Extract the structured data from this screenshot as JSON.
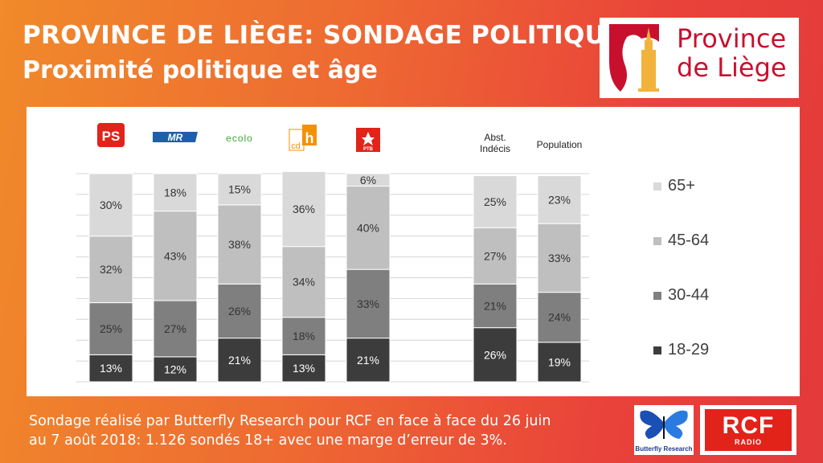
{
  "header": {
    "title": "PROVINCE DE LIÈGE: SONDAGE POLITIQUE",
    "subtitle": "Proximité politique et âge"
  },
  "logo": {
    "line1": "Province",
    "line2": "de Liège",
    "color": "#c8102e"
  },
  "footer": {
    "line1": "Sondage réalisé par Butterfly Research pour RCF en face à face du 26 juin",
    "line2": "au 7 août 2018:  1.126 sondés 18+ avec une marge d’erreur de 3%."
  },
  "sponsors": {
    "butterfly": "Butterfly Research",
    "rcf": "RCF",
    "rcf_sub": "RADIO"
  },
  "chart_data": {
    "type": "bar",
    "stacked": true,
    "categories": [
      "PS",
      "MR",
      "ecolo",
      "cdh",
      "PTB",
      "Abst. Indécis",
      "Population"
    ],
    "category_labels": [
      {
        "kind": "logo",
        "text": "PS",
        "color": "#e2231a"
      },
      {
        "kind": "logo",
        "text": "MR",
        "color": "#1f5fa8"
      },
      {
        "kind": "logo",
        "text": "ecolo",
        "color": "#3aa935"
      },
      {
        "kind": "logo",
        "text": "cdh",
        "color": "#f39200"
      },
      {
        "kind": "logo",
        "text": "PTB",
        "color": "#e2231a"
      },
      {
        "kind": "text",
        "lines": [
          "Abst.",
          "Indécis"
        ]
      },
      {
        "kind": "text",
        "lines": [
          "Population"
        ]
      }
    ],
    "series": [
      {
        "name": "18-29",
        "color": "#3c3c3c",
        "text_color": "#ffffff",
        "values": [
          13,
          12,
          21,
          13,
          21,
          26,
          19
        ]
      },
      {
        "name": "30-44",
        "color": "#7f7f7f",
        "text_color": "#333333",
        "values": [
          25,
          27,
          26,
          18,
          33,
          21,
          24
        ]
      },
      {
        "name": "45-64",
        "color": "#bfbfbf",
        "text_color": "#333333",
        "values": [
          32,
          43,
          38,
          34,
          40,
          27,
          33
        ]
      },
      {
        "name": "65+",
        "color": "#d9d9d9",
        "text_color": "#333333",
        "values": [
          30,
          18,
          15,
          36,
          6,
          25,
          23
        ]
      }
    ],
    "legend_order": [
      "65+",
      "45-64",
      "30-44",
      "18-29"
    ],
    "legend_position": "right",
    "ylim": [
      0,
      100
    ],
    "grid": true
  }
}
